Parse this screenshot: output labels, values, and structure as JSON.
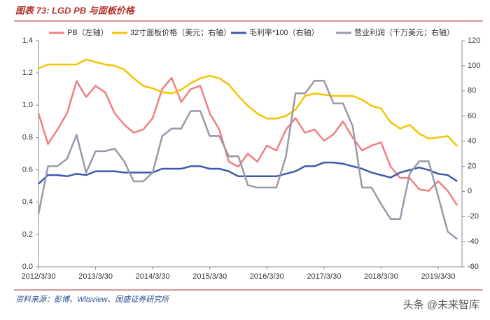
{
  "chart_data": {
    "type": "line",
    "title": "图表 73: LGD PB 与面板价格",
    "source": "资料来源：彭博、Witsview、国盛证券研究所",
    "watermark": "头条 @未来智库",
    "x": [
      0,
      2,
      4,
      6,
      8,
      10,
      12,
      14,
      16,
      18,
      20,
      22,
      24,
      26,
      28,
      30,
      32,
      34,
      36,
      38,
      40,
      42,
      44,
      46,
      48,
      50,
      52,
      54,
      56,
      58,
      60,
      62,
      64,
      66,
      68,
      70,
      72,
      74,
      76,
      78,
      80,
      82,
      84,
      86,
      88
    ],
    "xlim": [
      0,
      89
    ],
    "xticks": [
      {
        "value": 0,
        "label": "2012/3/30"
      },
      {
        "value": 12,
        "label": "2013/3/30"
      },
      {
        "value": 24,
        "label": "2014/3/30"
      },
      {
        "value": 36,
        "label": "2015/3/30"
      },
      {
        "value": 48,
        "label": "2016/3/30"
      },
      {
        "value": 60,
        "label": "2017/3/30"
      },
      {
        "value": 72,
        "label": "2018/3/30"
      },
      {
        "value": 84,
        "label": "2019/3/30"
      }
    ],
    "ylim": [
      0,
      1.4
    ],
    "yticks": [
      {
        "value": 0,
        "label": "0.0"
      },
      0.2,
      0.4,
      0.6,
      0.8,
      {
        "value": 1,
        "label": "1.0"
      },
      1.2,
      1.4
    ],
    "y2lim": [
      -60,
      120
    ],
    "y2ticks": [
      -60,
      -40,
      -20,
      0,
      20,
      40,
      60,
      80,
      100,
      120
    ],
    "legend": "top",
    "series": [
      {
        "name": "PB（左轴）",
        "color": "#ef7f83",
        "values": [
          0.95,
          0.76,
          0.85,
          0.95,
          1.15,
          1.05,
          1.12,
          1.08,
          0.95,
          0.88,
          0.83,
          0.85,
          0.92,
          1.1,
          1.17,
          1.02,
          1.1,
          1.12,
          0.95,
          0.85,
          0.65,
          0.62,
          0.7,
          0.65,
          0.75,
          0.72,
          0.85,
          0.92,
          0.83,
          0.85,
          0.78,
          0.82,
          0.9,
          0.8,
          0.72,
          0.75,
          0.77,
          0.62,
          0.55,
          0.55,
          0.48,
          0.47,
          0.53,
          0.47,
          0.38
        ]
      },
      {
        "name": "32寸面板价格（美元；右轴）",
        "color": "#f5c400",
        "axis": "y2",
        "values": [
          98,
          101,
          101,
          101,
          101,
          105,
          103,
          101,
          100,
          97,
          90,
          84,
          82,
          79,
          78,
          81,
          86,
          90,
          92,
          90,
          85,
          76,
          68,
          62,
          58,
          58,
          60,
          65,
          76,
          78,
          77,
          76,
          76,
          76,
          73,
          68,
          66,
          55,
          50,
          53,
          46,
          42,
          43,
          44,
          36
        ]
      },
      {
        "name": "毛利率*100（右轴）",
        "color": "#3e5ba9",
        "axis": "y2",
        "values": [
          6,
          13,
          13,
          12,
          14,
          13,
          16,
          16,
          16,
          15,
          15,
          15,
          15,
          18,
          18,
          18,
          20,
          20,
          18,
          18,
          16,
          12,
          12,
          12,
          12,
          12,
          14,
          16,
          20,
          20,
          23,
          23,
          22,
          20,
          18,
          15,
          13,
          11,
          15,
          17,
          19,
          17,
          14,
          13,
          8
        ]
      },
      {
        "name": "营业利润（千万美元；右轴）",
        "color": "#9a98aa",
        "axis": "y2",
        "values": [
          -18,
          20,
          20,
          26,
          45,
          15,
          32,
          32,
          34,
          24,
          8,
          8,
          15,
          44,
          50,
          50,
          64,
          64,
          44,
          44,
          28,
          28,
          5,
          3,
          3,
          3,
          28,
          78,
          78,
          88,
          88,
          70,
          70,
          52,
          3,
          3,
          -10,
          -22,
          -22,
          14,
          24,
          24,
          -4,
          -32,
          -38
        ]
      }
    ]
  }
}
